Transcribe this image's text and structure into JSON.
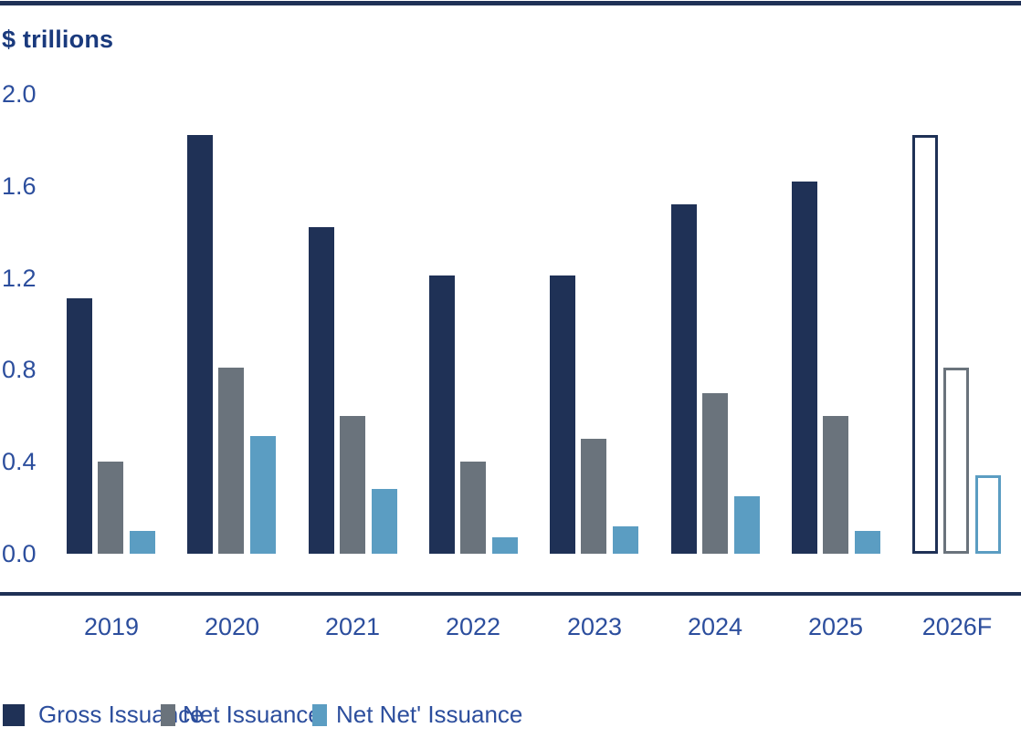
{
  "page": {
    "title_label": "$ trillions"
  },
  "chart_data": {
    "type": "bar",
    "title": "$ trillions",
    "ylabel": "$ trillions",
    "xlabel": "",
    "categories": [
      "2019",
      "2020",
      "2021",
      "2022",
      "2023",
      "2024",
      "2025",
      "2026F"
    ],
    "series": [
      {
        "name": "Gross Issuance",
        "color": "#1F3156",
        "values": [
          1.11,
          1.82,
          1.42,
          1.21,
          1.21,
          1.52,
          1.62,
          1.82
        ]
      },
      {
        "name": "Net Issuance",
        "color": "#6A737C",
        "values": [
          0.4,
          0.81,
          0.6,
          0.4,
          0.5,
          0.7,
          0.6,
          0.81
        ]
      },
      {
        "name": "Net Net' Issuance",
        "color": "#5B9DC2",
        "values": [
          0.1,
          0.51,
          0.28,
          0.07,
          0.12,
          0.25,
          0.1,
          0.34
        ]
      }
    ],
    "forecast_category": "2026F",
    "forecast_style": "outlined-hollow-bars",
    "y_ticks": [
      "2.0",
      "1.6",
      "1.2",
      "0.8",
      "0.4",
      "0.0"
    ],
    "ylim": [
      0.0,
      2.0
    ],
    "grid": false,
    "legend_position": "bottom"
  },
  "legend": {
    "items": [
      {
        "label": "Gross Issuance",
        "color": "#1F3156"
      },
      {
        "label": "Net Issuance",
        "color": "#6A737C"
      },
      {
        "label": "Net Net' Issuance",
        "color": "#5B9DC2"
      }
    ]
  },
  "colors": {
    "bar_navy": "#1F3156",
    "bar_gray": "#6A737C",
    "bar_blue": "#5B9DC2",
    "axis_text": "#2C4E9D",
    "title_text": "#1A3A7D",
    "rule": "#1F3156",
    "background": "#FFFFFF"
  }
}
